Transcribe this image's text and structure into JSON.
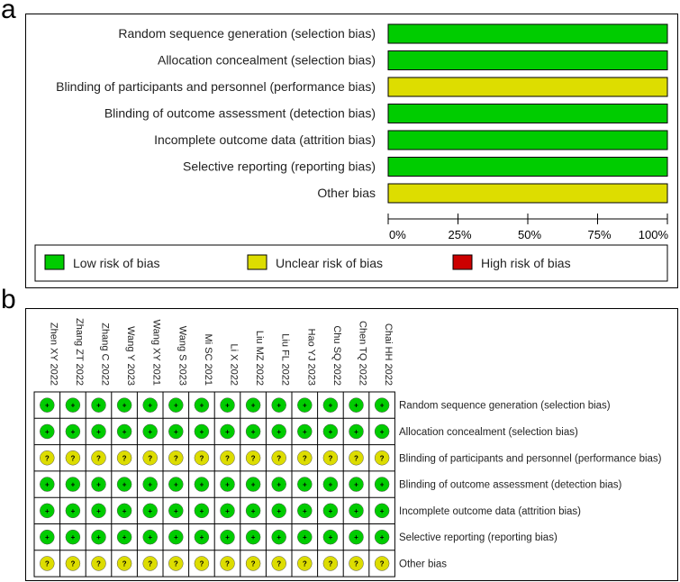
{
  "panels": {
    "a": "a",
    "b": "b"
  },
  "colors": {
    "low": "#00cc00",
    "unclear": "#dddd00",
    "high": "#cc0000",
    "axis": "#000000"
  },
  "chart_data": [
    {
      "type": "bar",
      "orientation": "horizontal",
      "stacked": true,
      "categories": [
        "Random sequence generation (selection bias)",
        "Allocation concealment (selection bias)",
        "Blinding of participants and personnel (performance bias)",
        "Blinding of outcome assessment (detection bias)",
        "Incomplete outcome data (attrition bias)",
        "Selective reporting (reporting bias)",
        "Other bias"
      ],
      "series": [
        {
          "name": "Low risk of bias",
          "color_key": "low",
          "values": [
            100,
            100,
            0,
            100,
            100,
            100,
            0
          ]
        },
        {
          "name": "Unclear risk of bias",
          "color_key": "unclear",
          "values": [
            0,
            0,
            100,
            0,
            0,
            0,
            100
          ]
        },
        {
          "name": "High risk of bias",
          "color_key": "high",
          "values": [
            0,
            0,
            0,
            0,
            0,
            0,
            0
          ]
        }
      ],
      "xlim": [
        0,
        100
      ],
      "xticks": [
        0,
        25,
        50,
        75,
        100
      ],
      "xtick_labels": [
        "0%",
        "25%",
        "50%",
        "75%",
        "100%"
      ],
      "legend": {
        "position": "bottom",
        "items": [
          {
            "label": "Low risk of bias",
            "color_key": "low"
          },
          {
            "label": "Unclear risk of bias",
            "color_key": "unclear"
          },
          {
            "label": "High risk of bias",
            "color_key": "high"
          }
        ]
      }
    },
    {
      "type": "heatmap",
      "studies": [
        "Zhen XY 2022",
        "Zhang ZT 2022",
        "Zhang C 2022",
        "Wang Y 2023",
        "Wang XY 2021",
        "Wang S 2023",
        "Mi SC 2021",
        "Li X 2022",
        "Liu MZ 2022",
        "Liu FL 2022",
        "Hao YJ 2023",
        "Chu SQ 2022",
        "Chen TQ 2022",
        "Chai HH 2022"
      ],
      "domains": [
        "Random sequence generation (selection bias)",
        "Allocation concealment (selection bias)",
        "Blinding of participants and personnel (performance bias)",
        "Blinding of outcome assessment (detection bias)",
        "Incomplete outcome data (attrition bias)",
        "Selective reporting (reporting bias)",
        "Other bias"
      ],
      "judgement_symbols": {
        "low": "+",
        "unclear": "?",
        "high": "-"
      },
      "judgements": [
        [
          "low",
          "low",
          "low",
          "low",
          "low",
          "low",
          "low",
          "low",
          "low",
          "low",
          "low",
          "low",
          "low",
          "low"
        ],
        [
          "low",
          "low",
          "low",
          "low",
          "low",
          "low",
          "low",
          "low",
          "low",
          "low",
          "low",
          "low",
          "low",
          "low"
        ],
        [
          "unclear",
          "unclear",
          "unclear",
          "unclear",
          "unclear",
          "unclear",
          "unclear",
          "unclear",
          "unclear",
          "unclear",
          "unclear",
          "unclear",
          "unclear",
          "unclear"
        ],
        [
          "low",
          "low",
          "low",
          "low",
          "low",
          "low",
          "low",
          "low",
          "low",
          "low",
          "low",
          "low",
          "low",
          "low"
        ],
        [
          "low",
          "low",
          "low",
          "low",
          "low",
          "low",
          "low",
          "low",
          "low",
          "low",
          "low",
          "low",
          "low",
          "low"
        ],
        [
          "low",
          "low",
          "low",
          "low",
          "low",
          "low",
          "low",
          "low",
          "low",
          "low",
          "low",
          "low",
          "low",
          "low"
        ],
        [
          "unclear",
          "unclear",
          "unclear",
          "unclear",
          "unclear",
          "unclear",
          "unclear",
          "unclear",
          "unclear",
          "unclear",
          "unclear",
          "unclear",
          "unclear",
          "unclear"
        ]
      ]
    }
  ]
}
